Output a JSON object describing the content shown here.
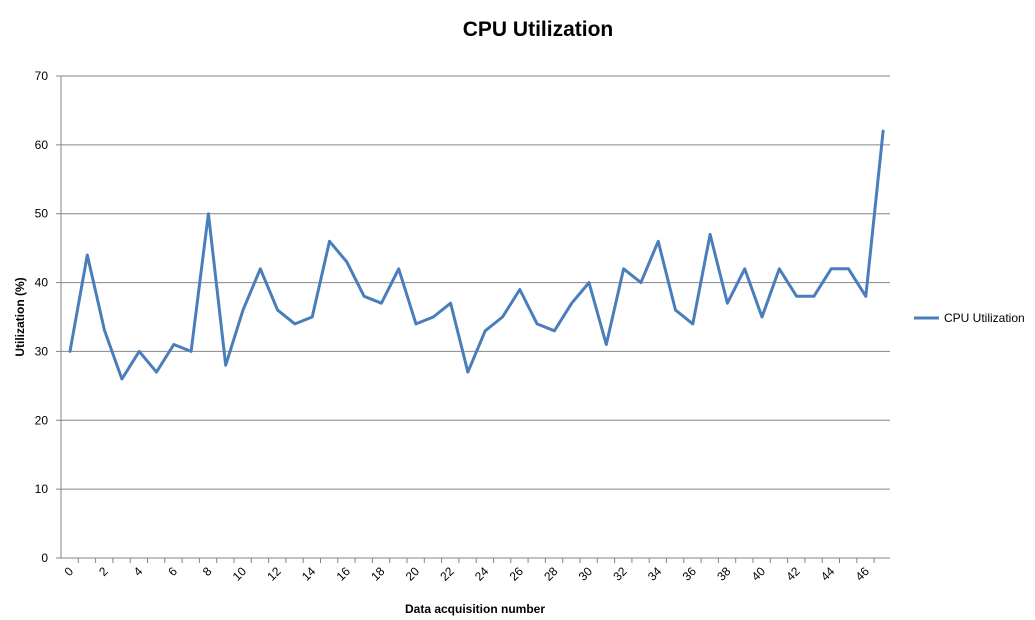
{
  "chart_data": {
    "type": "line",
    "title": "CPU Utilization",
    "xlabel": "Data acquisition number",
    "ylabel": "Utilization (%)",
    "ylim": [
      0,
      70
    ],
    "yticks": [
      0,
      10,
      20,
      30,
      40,
      50,
      60,
      70
    ],
    "xlim": [
      0,
      47
    ],
    "xticks": [
      0,
      2,
      4,
      6,
      8,
      10,
      12,
      14,
      16,
      18,
      20,
      22,
      24,
      26,
      28,
      30,
      32,
      34,
      36,
      38,
      40,
      42,
      44,
      46
    ],
    "grid": "horizontal",
    "legend_position": "right",
    "series": [
      {
        "name": "CPU Utilization",
        "color": "#4a7ebb",
        "x": [
          0,
          1,
          2,
          3,
          4,
          5,
          6,
          7,
          8,
          9,
          10,
          11,
          12,
          13,
          14,
          15,
          16,
          17,
          18,
          19,
          20,
          21,
          22,
          23,
          24,
          25,
          26,
          27,
          28,
          29,
          30,
          31,
          32,
          33,
          34,
          35,
          36,
          37,
          38,
          39,
          40,
          41,
          42,
          43,
          44,
          45,
          46,
          47
        ],
        "values": [
          30,
          44,
          33,
          26,
          30,
          27,
          31,
          30,
          50,
          28,
          36,
          42,
          36,
          34,
          35,
          46,
          43,
          38,
          37,
          42,
          34,
          35,
          37,
          27,
          33,
          35,
          39,
          34,
          33,
          37,
          40,
          31,
          42,
          40,
          46,
          36,
          34,
          47,
          37,
          42,
          35,
          42,
          38,
          38,
          42,
          42,
          38,
          62
        ]
      }
    ]
  }
}
